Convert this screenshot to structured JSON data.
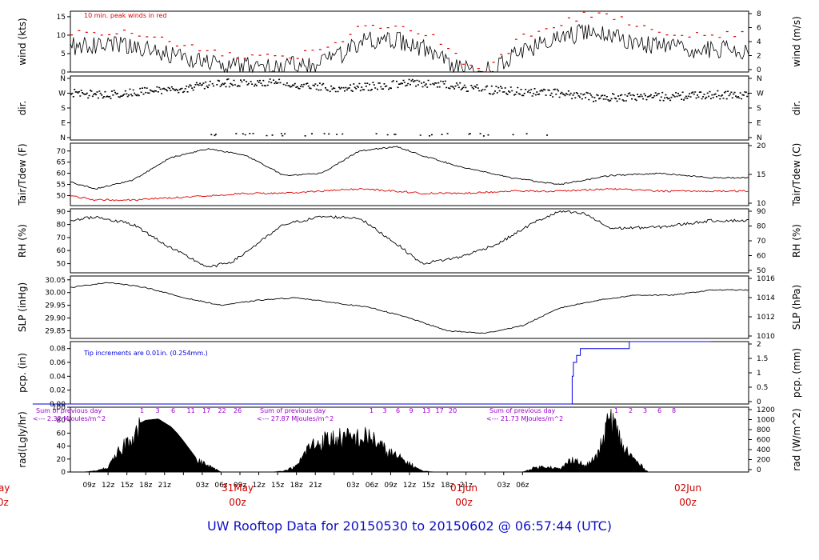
{
  "title": "UW Rooftop Data for 20150530  to  20150602 @ 06:57:44  (UTC)",
  "colors": {
    "series": "#000000",
    "red": "#e00000",
    "blue": "#0000dd",
    "purple": "#9900cc",
    "date": "#cc0000"
  },
  "x_axis": {
    "tick_labels": [
      "09z",
      "12z",
      "15z",
      "18z",
      "21z",
      "31May",
      "03z",
      "06z",
      "09z",
      "12z",
      "15z",
      "18z",
      "21z",
      "01Jun",
      "03z",
      "06z",
      "09z",
      "12z",
      "15z",
      "18z",
      "21z",
      "02Jun",
      "03z",
      "06z"
    ],
    "date_labels": [
      {
        "line1": "May",
        "line2": "00z"
      },
      {
        "line1": "31May",
        "line2": "00z"
      },
      {
        "line1": "01Jun",
        "line2": "00z"
      },
      {
        "line1": "02Jun",
        "line2": "00z"
      }
    ]
  },
  "chart_data": [
    {
      "type": "line",
      "id": "wind",
      "ylabel_left": "wind (kts)",
      "ylabel_right": "wind (m/s)",
      "left_ticks": [
        "0",
        "5",
        "10",
        "15"
      ],
      "right_ticks": [
        "0",
        "2",
        "4",
        "6",
        "8"
      ],
      "ylim": [
        0,
        16.5
      ],
      "annotation": "10 min. peak winds in red",
      "x_hours": [
        0,
        6,
        12,
        18,
        24,
        30,
        36,
        40,
        44,
        48,
        52,
        56,
        60,
        64,
        68,
        72,
        78,
        84,
        88,
        92,
        96,
        100,
        104,
        108
      ],
      "values": [
        6,
        7,
        7.5,
        6.5,
        4,
        2,
        1.5,
        1.5,
        2,
        3.5,
        8,
        9,
        8,
        5,
        1,
        0,
        6,
        9,
        11,
        10,
        8,
        7,
        6,
        6
      ],
      "peak_values": [
        10,
        11,
        11,
        10,
        7,
        5,
        4,
        4,
        5,
        7,
        12,
        13,
        12,
        9,
        3,
        0,
        10,
        13,
        16,
        15,
        13,
        11,
        10,
        10
      ]
    },
    {
      "type": "scatter",
      "id": "dir",
      "ylabel_left": "dir.",
      "ylabel_right": "dir.",
      "left_ticks": [
        "N",
        "E",
        "S",
        "W",
        "N"
      ],
      "right_ticks": [
        "N",
        "E",
        "S",
        "W",
        "N"
      ],
      "ylim": [
        0,
        360
      ],
      "x_hours": [
        0,
        6,
        12,
        18,
        24,
        30,
        36,
        42,
        48,
        54,
        60,
        66,
        72,
        78,
        84,
        90,
        96,
        102,
        108
      ],
      "values": [
        290,
        270,
        260,
        280,
        300,
        330,
        340,
        320,
        300,
        310,
        330,
        320,
        290,
        280,
        270,
        240,
        250,
        250,
        260
      ]
    },
    {
      "type": "line",
      "id": "temp",
      "ylabel_left": "Tair/Tdew (F)",
      "ylabel_right": "Tair/Tdew (C)",
      "left_ticks": [
        "50",
        "55",
        "60",
        "65",
        "70"
      ],
      "right_ticks": [
        "10",
        "15",
        "20"
      ],
      "ylim": [
        45.5,
        73.5
      ],
      "x_hours": [
        0,
        6,
        10,
        16,
        22,
        28,
        34,
        40,
        46,
        52,
        58,
        62,
        68,
        76,
        84,
        92,
        100,
        108
      ],
      "series": [
        {
          "values": [
            60,
            56,
            53,
            57,
            67,
            71,
            68,
            59,
            60,
            70,
            72,
            68,
            63,
            58,
            55,
            59,
            60,
            58
          ]
        },
        {
          "values": [
            52,
            50,
            48,
            48,
            49,
            50,
            51,
            51,
            52,
            53,
            52,
            51,
            51,
            52,
            52,
            53,
            52,
            52
          ]
        }
      ]
    },
    {
      "type": "line",
      "id": "rh",
      "ylabel_left": "RH (%)",
      "ylabel_right": "RH (%)",
      "left_ticks": [
        "50",
        "60",
        "70",
        "80",
        "90"
      ],
      "right_ticks": [
        "50",
        "60",
        "70",
        "80",
        "90"
      ],
      "ylim": [
        43,
        92
      ],
      "x_hours": [
        0,
        6,
        10,
        16,
        22,
        28,
        32,
        40,
        46,
        52,
        58,
        62,
        68,
        74,
        80,
        84,
        88,
        92,
        100,
        108
      ],
      "values": [
        75,
        83,
        86,
        80,
        62,
        47,
        52,
        80,
        86,
        85,
        65,
        50,
        55,
        65,
        82,
        90,
        88,
        77,
        78,
        83
      ]
    },
    {
      "type": "line",
      "id": "slp",
      "ylabel_left": "SLP (inHg)",
      "ylabel_right": "SLP (hPa)",
      "left_ticks": [
        "29.85",
        "29.90",
        "29.95",
        "30.00",
        "30.05"
      ],
      "right_ticks": [
        "1010",
        "1012",
        "1014",
        "1016"
      ],
      "ylim": [
        29.82,
        30.065
      ],
      "x_hours": [
        0,
        6,
        12,
        18,
        24,
        30,
        36,
        42,
        48,
        54,
        60,
        66,
        72,
        78,
        84,
        90,
        96,
        102,
        108
      ],
      "values": [
        29.99,
        30.02,
        30.04,
        30.02,
        29.98,
        29.95,
        29.97,
        29.98,
        29.96,
        29.94,
        29.9,
        29.85,
        29.84,
        29.87,
        29.94,
        29.97,
        29.99,
        29.99,
        30.01
      ]
    },
    {
      "type": "line",
      "id": "pcp",
      "ylabel_left": "pcp. (in)",
      "ylabel_right": "pcp. (mm)",
      "left_ticks": [
        "0.00",
        "0.02",
        "0.04",
        "0.06",
        "0.08"
      ],
      "right_ticks": [
        "0",
        "0.5",
        "1",
        "1.5",
        "2"
      ],
      "ylim": [
        0,
        0.09
      ],
      "annotation": "Tip increments are 0.01in. (0.254mm.)",
      "x_hours": [
        0,
        85.4,
        85.9,
        86.1,
        86.6,
        87.2,
        94.5,
        95,
        108
      ],
      "values": [
        0,
        0,
        0.04,
        0.06,
        0.07,
        0.08,
        0.08,
        0.09,
        0.09
      ]
    },
    {
      "type": "area",
      "id": "rad",
      "ylabel_left": "rad(Lgly/hr)",
      "ylabel_right": "rad (W/m^2)",
      "left_ticks": [
        "0",
        "20",
        "40",
        "60",
        "80",
        "100"
      ],
      "right_ticks": [
        "0",
        "200",
        "400",
        "600",
        "800",
        "1000",
        "1200"
      ],
      "ylim": [
        0,
        100
      ],
      "day_sums": [
        {
          "text": "Sum of previous day",
          "value": "<--- 2.32 MJoules/m^2"
        },
        {
          "text": "Sum of previous day",
          "value": "<--- 27.87 MJoules/m^2"
        },
        {
          "text": "Sum of previous day",
          "value": "<--- 21.73 MJoules/m^2"
        }
      ],
      "hour_markers": [
        [
          "1",
          "3",
          "6",
          "11",
          "17",
          "22",
          "26"
        ],
        [
          "1",
          "3",
          "6",
          "9",
          "13",
          "17",
          "20"
        ],
        [
          "1",
          "2",
          "3",
          "6",
          "8"
        ]
      ],
      "x_hours": [
        0,
        8,
        10,
        12,
        14,
        16,
        18,
        20,
        22,
        23,
        24,
        26,
        30,
        32,
        34,
        36,
        38,
        40,
        42,
        44,
        46,
        48,
        50,
        54,
        56,
        60,
        62,
        64,
        66,
        68,
        70,
        72,
        74,
        76,
        78,
        80,
        82,
        84,
        86,
        88,
        90,
        92,
        94,
        96,
        98
      ],
      "values": [
        0,
        0,
        2,
        8,
        40,
        70,
        80,
        82,
        70,
        60,
        48,
        22,
        0,
        0,
        0,
        0,
        0,
        2,
        10,
        45,
        55,
        60,
        60,
        62,
        40,
        15,
        2,
        0,
        0,
        0,
        0,
        0,
        0,
        0,
        0,
        8,
        10,
        5,
        25,
        10,
        30,
        100,
        45,
        20,
        0
      ]
    }
  ]
}
